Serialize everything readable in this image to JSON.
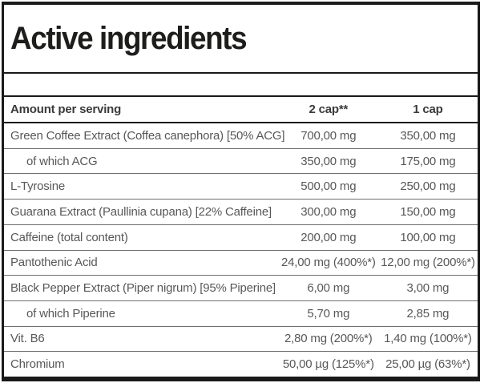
{
  "title": "Active ingredients",
  "table": {
    "headers": {
      "name": "Amount per serving",
      "two_cap": "2 cap**",
      "one_cap": "1 cap"
    },
    "rows": [
      {
        "name": "Green Coffee Extract (Coffea canephora) [50% ACG]",
        "two_cap": "700,00 mg",
        "one_cap": "350,00 mg",
        "sub": false
      },
      {
        "name": "of which ACG",
        "two_cap": "350,00 mg",
        "one_cap": "175,00 mg",
        "sub": true
      },
      {
        "name": "L-Tyrosine",
        "two_cap": "500,00 mg",
        "one_cap": "250,00 mg",
        "sub": false
      },
      {
        "name": "Guarana Extract (Paullinia cupana) [22% Caffeine]",
        "two_cap": "300,00 mg",
        "one_cap": "150,00 mg",
        "sub": false
      },
      {
        "name": "Caffeine (total content)",
        "two_cap": "200,00 mg",
        "one_cap": "100,00 mg",
        "sub": false
      },
      {
        "name": "Pantothenic Acid",
        "two_cap": "24,00 mg (400%*)",
        "one_cap": "12,00 mg (200%*)",
        "sub": false
      },
      {
        "name": "Black Pepper Extract (Piper nigrum) [95% Piperine]",
        "two_cap": "6,00 mg",
        "one_cap": "3,00 mg",
        "sub": false
      },
      {
        "name": "of which Piperine",
        "two_cap": "5,70 mg",
        "one_cap": "2,85 mg",
        "sub": true
      },
      {
        "name": "Vit. B6",
        "two_cap": "2,80 mg (200%*)",
        "one_cap": "1,40 mg (100%*)",
        "sub": false
      },
      {
        "name": "Chromium",
        "two_cap": "50,00 µg (125%*)",
        "one_cap": "25,00 µg (63%*)",
        "sub": false
      }
    ]
  },
  "colors": {
    "border": "#1a1a1a",
    "title_text": "#1d1d1b",
    "header_text": "#3a3a3c",
    "body_text": "#58585a",
    "row_separator": "#6f6f6f",
    "background": "#ffffff"
  }
}
